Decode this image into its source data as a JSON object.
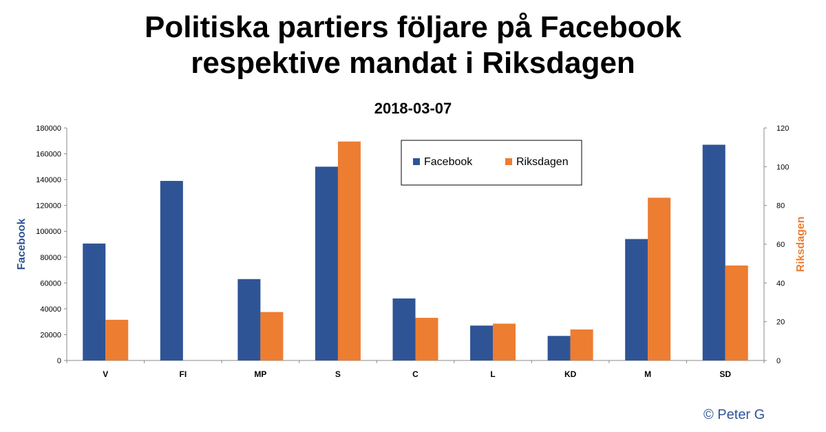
{
  "chart_data": {
    "type": "bar",
    "title": "Politiska partiers följare på Facebook respektive mandat i Riksdagen",
    "title_lines": [
      "Politiska partiers följare på Facebook",
      "respektive mandat i Riksdagen"
    ],
    "subtitle": "2018-03-07",
    "categories": [
      "V",
      "FI",
      "MP",
      "S",
      "C",
      "L",
      "KD",
      "M",
      "SD"
    ],
    "series": [
      {
        "name": "Facebook",
        "axis": "left",
        "color": "#2f5496",
        "values": [
          90500,
          139000,
          63000,
          150000,
          48000,
          27000,
          19000,
          94000,
          167000
        ]
      },
      {
        "name": "Riksdagen",
        "axis": "right",
        "color": "#ed7d31",
        "values": [
          21,
          0,
          25,
          113,
          22,
          19,
          16,
          84,
          49
        ]
      }
    ],
    "ylabel": "Facebook",
    "ylabel_color": "#2f5496",
    "y2label": "Riksdagen",
    "y2label_color": "#ed7d31",
    "ylim": [
      0,
      180000
    ],
    "yticks": [
      "0",
      "20000",
      "40000",
      "60000",
      "80000",
      "100000",
      "120000",
      "140000",
      "160000",
      "180000"
    ],
    "y2lim": [
      0,
      120
    ],
    "y2ticks": [
      "0",
      "20",
      "40",
      "60",
      "80",
      "100",
      "120"
    ],
    "grid": false,
    "legend_position": "top-center"
  },
  "footer": {
    "copyright": "© Peter G"
  }
}
